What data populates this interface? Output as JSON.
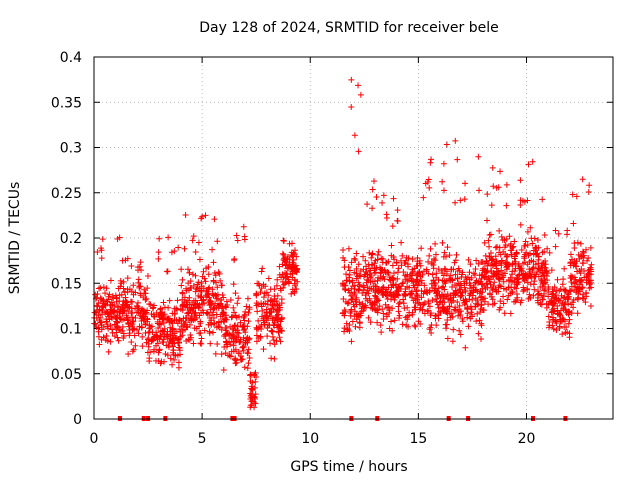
{
  "chart_data": {
    "type": "scatter",
    "title": "Day 128 of 2024, SRMTID for receiver bele",
    "xlabel": "GPS time / hours",
    "ylabel": "SRMTID / TECUs",
    "xlim": [
      0,
      24
    ],
    "ylim": [
      0,
      0.4
    ],
    "xticks": [
      0,
      5,
      10,
      15,
      20
    ],
    "xtick_labels": [
      "0",
      "5",
      "10",
      "15",
      "20"
    ],
    "yticks": [
      0,
      0.05,
      0.1,
      0.15,
      0.2,
      0.25,
      0.3,
      0.35,
      0.4
    ],
    "ytick_labels": [
      "0",
      "0.05",
      "0.1",
      "0.15",
      "0.2",
      "0.25",
      "0.3",
      "0.35",
      "0.4"
    ],
    "grid": true,
    "marker": "+",
    "color": "#ff0000",
    "data_gap_hours": [
      9.4,
      11.5
    ],
    "clusters": [
      {
        "x_range": [
          0.0,
          1.2
        ],
        "y_center": 0.115,
        "y_spread": 0.03,
        "peak_y": 0.205
      },
      {
        "x_range": [
          1.2,
          2.5
        ],
        "y_center": 0.12,
        "y_spread": 0.035,
        "peak_y": 0.18
      },
      {
        "x_range": [
          2.5,
          4.0
        ],
        "y_center": 0.095,
        "y_spread": 0.03,
        "peak_y": 0.215
      },
      {
        "x_range": [
          4.0,
          6.0
        ],
        "y_center": 0.125,
        "y_spread": 0.035,
        "peak_y": 0.228
      },
      {
        "x_range": [
          6.0,
          7.2
        ],
        "y_center": 0.095,
        "y_spread": 0.035,
        "peak_y": 0.22
      },
      {
        "x_range": [
          7.2,
          7.5
        ],
        "y_center": 0.03,
        "y_spread": 0.02,
        "peak_y": 0.06
      },
      {
        "x_range": [
          7.5,
          8.7
        ],
        "y_center": 0.115,
        "y_spread": 0.03,
        "peak_y": 0.17
      },
      {
        "x_range": [
          8.7,
          9.4
        ],
        "y_center": 0.165,
        "y_spread": 0.02,
        "peak_y": 0.2
      },
      {
        "x_range": [
          11.5,
          12.5
        ],
        "y_center": 0.14,
        "y_spread": 0.04,
        "peak_y": 0.38
      },
      {
        "x_range": [
          12.5,
          15.5
        ],
        "y_center": 0.145,
        "y_spread": 0.035,
        "peak_y": 0.265
      },
      {
        "x_range": [
          15.5,
          18.0
        ],
        "y_center": 0.14,
        "y_spread": 0.04,
        "peak_y": 0.31
      },
      {
        "x_range": [
          18.0,
          21.0
        ],
        "y_center": 0.165,
        "y_spread": 0.035,
        "peak_y": 0.287
      },
      {
        "x_range": [
          21.0,
          22.0
        ],
        "y_center": 0.12,
        "y_spread": 0.03,
        "peak_y": 0.21
      },
      {
        "x_range": [
          22.0,
          23.0
        ],
        "y_center": 0.155,
        "y_spread": 0.03,
        "peak_y": 0.265
      }
    ],
    "zero_markers_x": [
      1.2,
      2.3,
      2.5,
      3.3,
      6.4,
      6.5,
      11.9,
      13.1,
      16.4,
      17.3,
      20.3,
      21.8
    ]
  }
}
